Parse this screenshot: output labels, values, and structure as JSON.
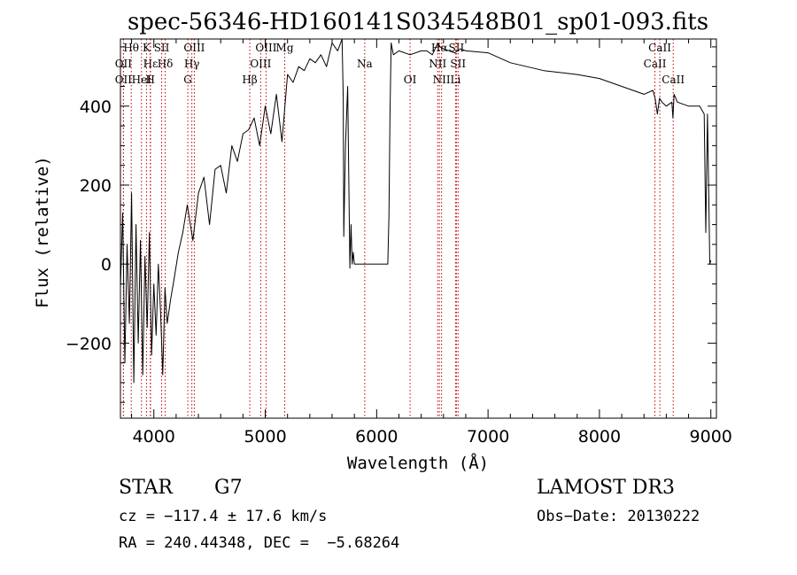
{
  "chart_data": {
    "type": "line",
    "title": "spec-56346-HD160141S034548B01_sp01-093.fits",
    "xlabel": "Wavelength (Å)",
    "ylabel": "Flux (relative)",
    "xlim": [
      3700,
      9050
    ],
    "ylim": [
      -390,
      570
    ],
    "xticks": [
      4000,
      5000,
      6000,
      7000,
      8000,
      9000
    ],
    "yticks": [
      -200,
      0,
      200,
      400
    ],
    "series": [
      {
        "name": "spectrum",
        "x": [
          3700,
          3720,
          3740,
          3760,
          3780,
          3800,
          3820,
          3840,
          3860,
          3880,
          3900,
          3920,
          3940,
          3960,
          3980,
          4000,
          4020,
          4040,
          4060,
          4080,
          4100,
          4120,
          4150,
          4180,
          4220,
          4260,
          4300,
          4350,
          4400,
          4450,
          4500,
          4550,
          4600,
          4650,
          4700,
          4750,
          4800,
          4850,
          4900,
          4950,
          5000,
          5050,
          5100,
          5150,
          5200,
          5250,
          5300,
          5350,
          5400,
          5450,
          5500,
          5550,
          5600,
          5650,
          5690,
          5700,
          5705,
          5720,
          5740,
          5760,
          5770,
          5780,
          5790,
          5800,
          6100,
          6110,
          6120,
          6130,
          6150,
          6200,
          6300,
          6400,
          6450,
          6500,
          6550,
          6570,
          6600,
          6700,
          6750,
          6800,
          7000,
          7200,
          7500,
          7800,
          8000,
          8200,
          8400,
          8480,
          8500,
          8520,
          8540,
          8560,
          8600,
          8650,
          8660,
          8670,
          8700,
          8800,
          8900,
          8940,
          8955,
          8970,
          8980,
          8990,
          9000
        ],
        "values": [
          -60,
          130,
          -250,
          50,
          -150,
          180,
          -300,
          100,
          -200,
          60,
          -280,
          20,
          -160,
          80,
          -230,
          -50,
          -180,
          0,
          -120,
          -280,
          -60,
          -150,
          -90,
          -40,
          30,
          80,
          150,
          60,
          180,
          220,
          100,
          240,
          250,
          180,
          300,
          260,
          330,
          340,
          370,
          300,
          400,
          330,
          430,
          310,
          480,
          460,
          500,
          490,
          520,
          510,
          530,
          500,
          560,
          540,
          570,
          420,
          70,
          300,
          450,
          -10,
          100,
          0,
          30,
          0,
          0,
          120,
          380,
          560,
          530,
          540,
          530,
          540,
          540,
          530,
          560,
          550,
          545,
          535,
          545,
          540,
          535,
          510,
          490,
          480,
          470,
          450,
          430,
          440,
          420,
          380,
          420,
          410,
          400,
          410,
          370,
          430,
          410,
          400,
          400,
          380,
          80,
          380,
          200,
          0,
          10
        ]
      }
    ],
    "line_markers": [
      {
        "label": "Hθ",
        "x": 3797
      },
      {
        "label": "OII",
        "x": 3727
      },
      {
        "label": "OII",
        "x": 3727
      },
      {
        "label": "K",
        "x": 3934
      },
      {
        "label": "Hδ",
        "x": 4102
      },
      {
        "label": "HeI",
        "x": 3889
      },
      {
        "label": "SII",
        "x": 4070
      },
      {
        "label": "Hε",
        "x": 3970
      },
      {
        "label": "H",
        "x": 3968
      },
      {
        "label": "OIII",
        "x": 4363
      },
      {
        "label": "Hγ",
        "x": 4341
      },
      {
        "label": "G",
        "x": 4305
      },
      {
        "label": "OIII",
        "x": 5007
      },
      {
        "label": "OIII",
        "x": 4959
      },
      {
        "label": "Hβ",
        "x": 4861
      },
      {
        "label": "Mg",
        "x": 5175
      },
      {
        "label": "Na",
        "x": 5893
      },
      {
        "label": "OI",
        "x": 6300
      },
      {
        "label": "Hα",
        "x": 6563
      },
      {
        "label": "NII",
        "x": 6548
      },
      {
        "label": "NII",
        "x": 6583
      },
      {
        "label": "SII",
        "x": 6716
      },
      {
        "label": "SII",
        "x": 6731
      },
      {
        "label": "Li",
        "x": 6708
      },
      {
        "label": "CaII",
        "x": 8542
      },
      {
        "label": "CaII",
        "x": 8498
      },
      {
        "label": "CaII",
        "x": 8662
      }
    ]
  },
  "info": {
    "object_class": "STAR",
    "subclass": "G7",
    "survey": "LAMOST DR3",
    "cz": "cz = −117.4 ± 17.6 km/s",
    "obs_date": "Obs−Date: 20130222",
    "coords": "RA = 240.44348, DEC =  −5.68264"
  }
}
